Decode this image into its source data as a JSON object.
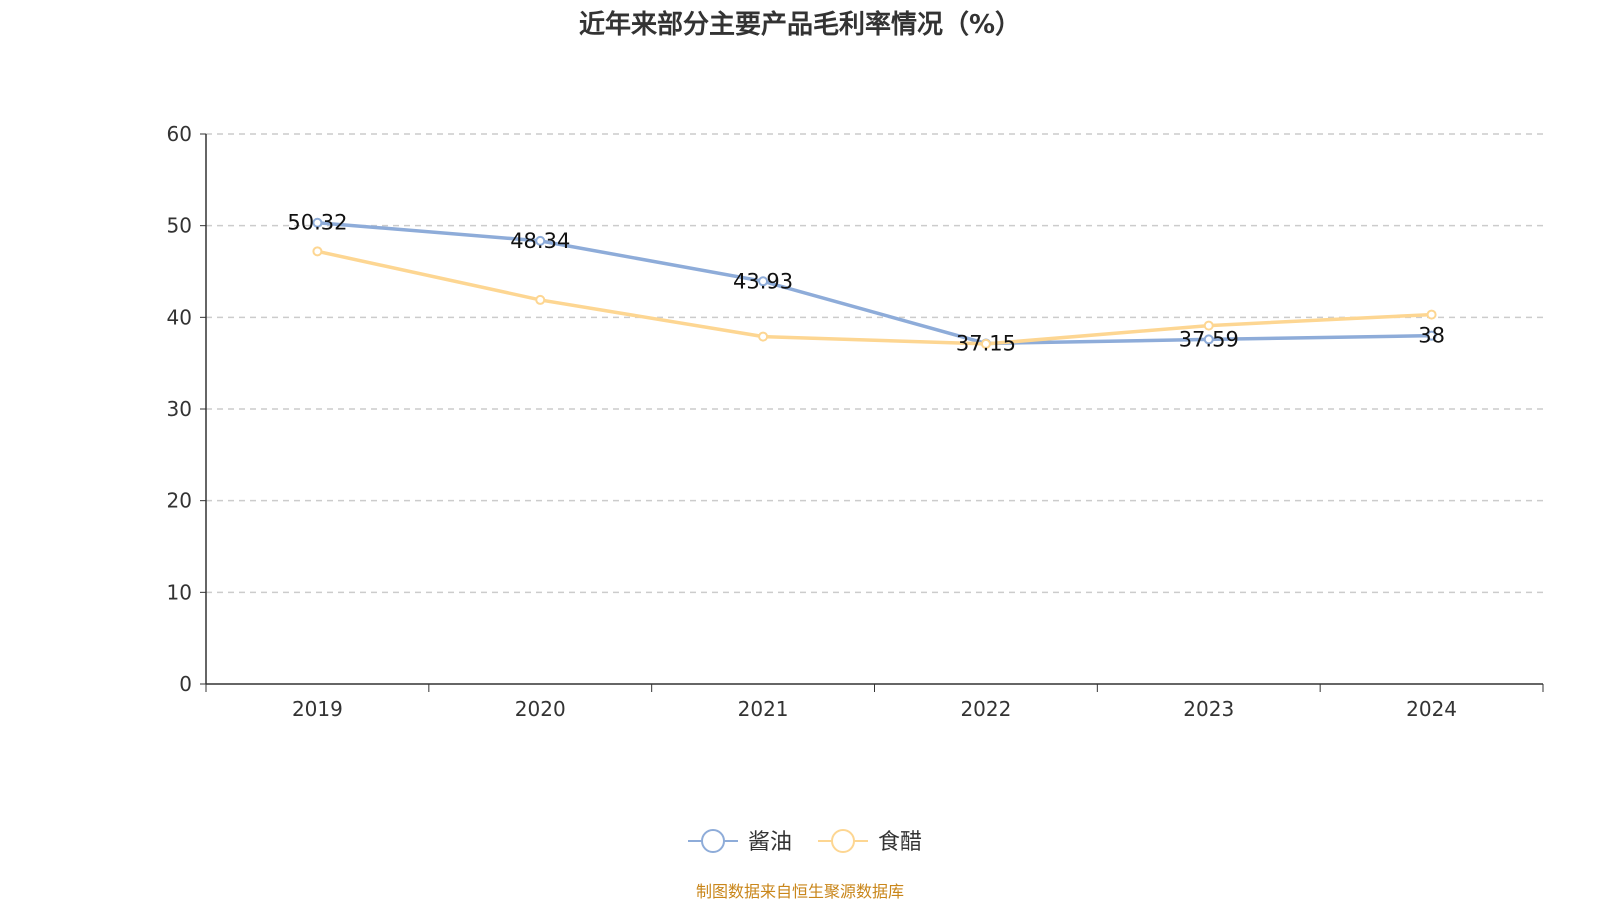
{
  "chart_data": {
    "type": "line",
    "title": "近年来部分主要产品毛利率情况（%）",
    "categories": [
      "2019",
      "2020",
      "2021",
      "2022",
      "2023",
      "2024"
    ],
    "ylim": [
      0,
      60
    ],
    "yticks": [
      0,
      10,
      20,
      30,
      40,
      50,
      60
    ],
    "grid": true,
    "legend_placement": "bottom",
    "series": [
      {
        "name": "酱油",
        "color": "#8eacd9",
        "values": [
          50.32,
          48.34,
          43.93,
          37.15,
          37.59,
          38
        ],
        "labels": [
          "50.32",
          "48.34",
          "43.93",
          "37.15",
          "37.59",
          "38"
        ]
      },
      {
        "name": "食醋",
        "color": "#fdd692",
        "values": [
          47.2,
          41.9,
          37.9,
          37.1,
          39.1,
          40.3
        ]
      }
    ]
  },
  "source": "制图数据来自恒生聚源数据库"
}
